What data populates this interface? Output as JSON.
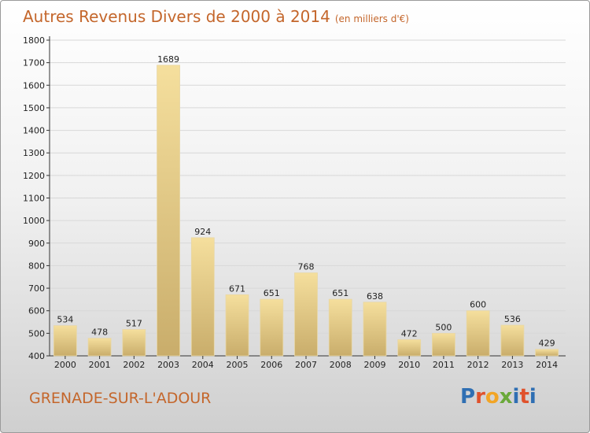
{
  "title": "Autres Revenus Divers de 2000 à 2014",
  "unit": "(en milliers d'€)",
  "location": "GRENADE-SUR-L'ADOUR",
  "logo": {
    "text": "Proxiti",
    "letters": [
      {
        "ch": "P",
        "color": "#2f6fb3"
      },
      {
        "ch": "r",
        "color": "#e0522c"
      },
      {
        "ch": "o",
        "color": "#f2a526"
      },
      {
        "ch": "x",
        "color": "#6aa93a"
      },
      {
        "ch": "i",
        "color": "#2f6fb3"
      },
      {
        "ch": "t",
        "color": "#e0522c"
      },
      {
        "ch": "i",
        "color": "#2f6fb3"
      }
    ]
  },
  "colors": {
    "title": "#c4662b",
    "bar_light": "#f5df9d",
    "bar_dark": "#c9ad6b",
    "grid": "#d8d8d8",
    "axis": "#333333"
  },
  "chart_data": {
    "type": "bar",
    "categories": [
      "2000",
      "2001",
      "2002",
      "2003",
      "2004",
      "2005",
      "2006",
      "2007",
      "2008",
      "2009",
      "2010",
      "2011",
      "2012",
      "2013",
      "2014"
    ],
    "values": [
      534,
      478,
      517,
      1689,
      924,
      671,
      651,
      768,
      651,
      638,
      472,
      500,
      600,
      536,
      429
    ],
    "ylim": [
      400,
      1800
    ],
    "yticks": [
      400,
      500,
      600,
      700,
      800,
      900,
      1000,
      1100,
      1200,
      1300,
      1400,
      1500,
      1600,
      1700,
      1800
    ],
    "grid": true
  }
}
